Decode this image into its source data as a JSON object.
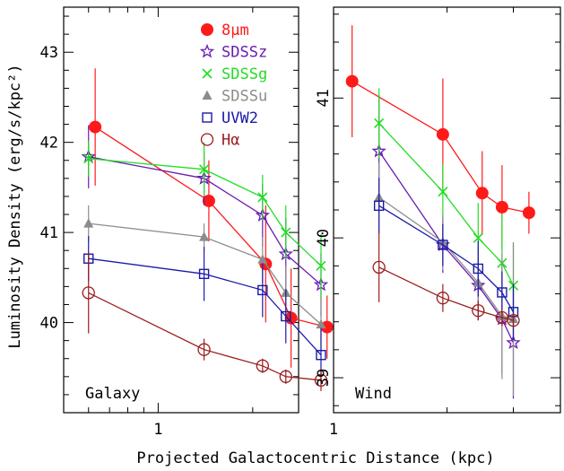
{
  "figure": {
    "xlabel": "Projected Galactocentric Distance (kpc)",
    "ylabel": "Luminosity Density (erg/s/kpc²)"
  },
  "legend": [
    {
      "key": "8um",
      "label": "8μm",
      "marker": "filled-circle",
      "color": "#ff1a1a"
    },
    {
      "key": "sdssz",
      "label": "SDSSz",
      "marker": "open-star",
      "color": "#6a1bb3"
    },
    {
      "key": "sdssg",
      "label": "SDSSg",
      "marker": "cross",
      "color": "#22dd22"
    },
    {
      "key": "sdssu",
      "label": "SDSSu",
      "marker": "filled-triangle",
      "color": "#8c8c8c"
    },
    {
      "key": "uvw2",
      "label": "UVW2",
      "marker": "open-square",
      "color": "#1a1aa8"
    },
    {
      "key": "halpha",
      "label": "Hα",
      "marker": "open-circle",
      "color": "#9b1c1c"
    }
  ],
  "chart_data": [
    {
      "type": "line",
      "title": "Galaxy",
      "xscale": "log",
      "xlim": [
        0.5,
        2.8
      ],
      "ylim": [
        39.0,
        43.5
      ],
      "xticklabels": [
        "1"
      ],
      "yticklabels": [
        "40",
        "41",
        "42",
        "43"
      ],
      "series": [
        {
          "name": "8μm",
          "key": "8um",
          "x": [
            0.63,
            1.45,
            2.2,
            2.65,
            3.45
          ],
          "y": [
            42.17,
            41.35,
            40.65,
            40.05,
            39.95
          ],
          "yerr": [
            0.65,
            0.45,
            0.65,
            0.55,
            0.35
          ]
        },
        {
          "name": "SDSSz",
          "key": "sdssz",
          "x": [
            0.6,
            1.4,
            2.15,
            2.55,
            3.3
          ],
          "y": [
            41.84,
            41.6,
            41.19,
            40.76,
            40.42
          ],
          "yerr": [
            0.35,
            0.3,
            0.35,
            0.4,
            0.35
          ]
        },
        {
          "name": "SDSSg",
          "key": "sdssg",
          "x": [
            0.6,
            1.4,
            2.15,
            2.55,
            3.3
          ],
          "y": [
            41.82,
            41.7,
            41.39,
            41.0,
            40.63
          ],
          "yerr": [
            0.2,
            0.3,
            0.25,
            0.3,
            0.35
          ]
        },
        {
          "name": "SDSSu",
          "key": "sdssu",
          "x": [
            0.6,
            1.4,
            2.15,
            2.55,
            3.3
          ],
          "y": [
            41.1,
            40.95,
            40.7,
            40.33,
            39.98
          ],
          "yerr": [
            0.2,
            0.15,
            0.25,
            0.3,
            0.3
          ]
        },
        {
          "name": "UVW2",
          "key": "uvw2",
          "x": [
            0.6,
            1.4,
            2.15,
            2.55,
            3.3
          ],
          "y": [
            40.71,
            40.54,
            40.36,
            40.07,
            39.64
          ],
          "yerr": [
            0.25,
            0.3,
            0.3,
            0.3,
            0.3
          ]
        },
        {
          "name": "Hα",
          "key": "halpha",
          "x": [
            0.6,
            1.4,
            2.15,
            2.55,
            3.3
          ],
          "y": [
            40.33,
            39.7,
            39.52,
            39.4,
            39.36
          ],
          "yerr": [
            0.45,
            0.12,
            0.08,
            0.08,
            0.12
          ]
        }
      ]
    },
    {
      "type": "line",
      "title": "Wind",
      "xscale": "log",
      "xlim": [
        1.0,
        4.0
      ],
      "ylim": [
        38.75,
        41.65
      ],
      "xticklabels": [
        "1"
      ],
      "yticklabels": [
        "39",
        "40",
        "41"
      ],
      "series": [
        {
          "name": "8μm",
          "key": "8um",
          "x": [
            1.12,
            1.95,
            2.48,
            2.8,
            3.3
          ],
          "y": [
            41.12,
            40.74,
            40.32,
            40.22,
            40.18
          ],
          "yerr": [
            0.4,
            0.4,
            0.3,
            0.3,
            0.15
          ]
        },
        {
          "name": "SDSSz",
          "key": "sdssz",
          "x": [
            1.32,
            1.95,
            2.42,
            2.8,
            3.0
          ],
          "y": [
            40.62,
            39.95,
            39.66,
            39.42,
            39.25
          ],
          "yerr": [
            0.4,
            0.2,
            0.25,
            0.4,
            0.4
          ]
        },
        {
          "name": "SDSSg",
          "key": "sdssg",
          "x": [
            1.32,
            1.95,
            2.42,
            2.8,
            3.0
          ],
          "y": [
            40.82,
            40.33,
            40.0,
            39.82,
            39.66
          ],
          "yerr": [
            0.25,
            0.2,
            0.25,
            0.35,
            0.3
          ]
        },
        {
          "name": "SDSSu",
          "key": "sdssu",
          "x": [
            1.32,
            1.95,
            2.42,
            2.8,
            3.0
          ],
          "y": [
            40.29,
            39.97,
            39.68,
            39.44,
            39.42
          ],
          "yerr": [
            0.25,
            0.2,
            0.25,
            0.45,
            0.55
          ]
        },
        {
          "name": "UVW2",
          "key": "uvw2",
          "x": [
            1.32,
            1.95,
            2.42,
            2.8,
            3.0
          ],
          "y": [
            40.23,
            39.95,
            39.78,
            39.61,
            39.47
          ],
          "yerr": [
            0.2,
            0.15,
            0.2,
            0.15,
            0.2
          ]
        },
        {
          "name": "Hα",
          "key": "halpha",
          "x": [
            1.32,
            1.95,
            2.42,
            2.8,
            3.0
          ],
          "y": [
            39.79,
            39.57,
            39.48,
            39.43,
            39.41
          ],
          "yerr": [
            0.25,
            0.1,
            0.07,
            0.06,
            0.05
          ]
        }
      ]
    }
  ]
}
